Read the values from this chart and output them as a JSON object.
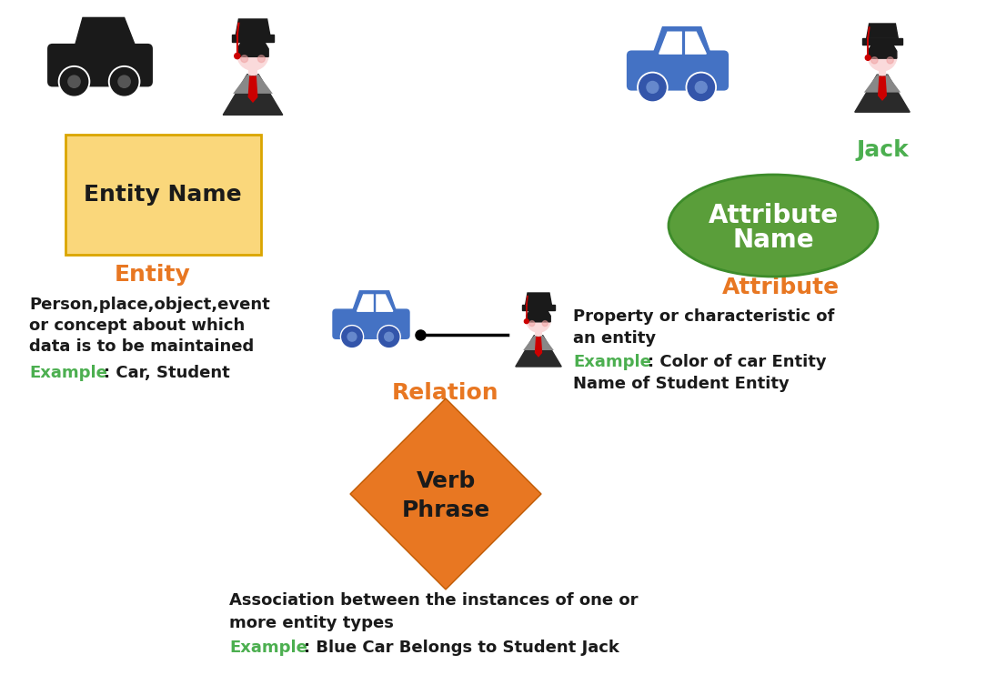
{
  "bg_color": "#ffffff",
  "orange_color": "#E87722",
  "green_color": "#4CAF50",
  "black_color": "#1a1a1a",
  "white_color": "#ffffff",
  "entity_box_color": "#FAD77B",
  "entity_box_edge": "#C8A000",
  "attr_ellipse_color": "#5A9E3A",
  "relation_diamond_color": "#E87722",
  "blue_car_color": "#4472C4",
  "entity_label": "Entity Name",
  "entity_title": "Entity",
  "entity_desc1": "Person,place,object,event",
  "entity_desc2": "or concept about which",
  "entity_desc3": "data is to be maintained",
  "entity_example": "Example",
  "entity_example2": ": Car, Student",
  "attr_label1": "Attribute",
  "attr_label2": "Name",
  "attr_title": "Attribute",
  "attr_desc1": "Property or characteristic of",
  "attr_desc2": "an entity",
  "attr_example": "Example",
  "attr_example2": ": Color of car Entity",
  "attr_example3": "Name of Student Entity",
  "jack_label": "Jack",
  "relation_title": "Relation",
  "relation_label1": "Verb",
  "relation_label2": "Phrase",
  "relation_desc1": "Association between the instances of one or",
  "relation_desc2": "more entity types",
  "relation_example": "Example",
  "relation_example2": ": Blue Car Belongs to Student Jack"
}
